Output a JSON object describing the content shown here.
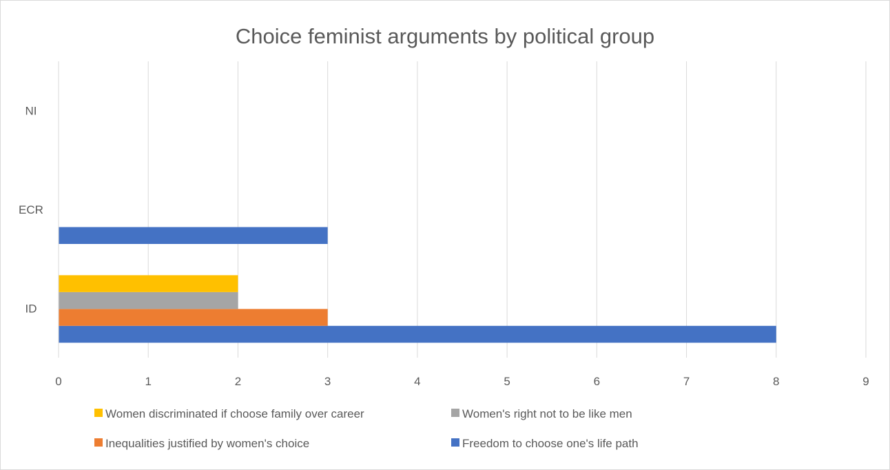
{
  "chart_data": {
    "type": "bar",
    "orientation": "horizontal",
    "title": "Choice feminist arguments by political group",
    "xlabel": "",
    "ylabel": "",
    "categories": [
      "ID",
      "ECR",
      "NI"
    ],
    "xlim": [
      0,
      9
    ],
    "xticks": [
      "0",
      "1",
      "2",
      "3",
      "4",
      "5",
      "6",
      "7",
      "8",
      "9"
    ],
    "grid": "vertical",
    "legend_position": "bottom",
    "series": [
      {
        "name": "Freedom to choose one's life path",
        "color": "#4472C4",
        "values": [
          8,
          3,
          0
        ]
      },
      {
        "name": "Inequalities justified by women's choice",
        "color": "#ED7D31",
        "values": [
          3,
          0,
          0
        ]
      },
      {
        "name": "Women's right not to be like men",
        "color": "#A5A5A5",
        "values": [
          2,
          0,
          0
        ]
      },
      {
        "name": "Women discriminated if choose family over career",
        "color": "#FFC000",
        "values": [
          2,
          0,
          0
        ]
      }
    ],
    "legend_order": [
      "Women discriminated if choose family over career",
      "Women's right not to be like men",
      "Inequalities justified by women's choice",
      "Freedom to choose one's life path"
    ]
  }
}
